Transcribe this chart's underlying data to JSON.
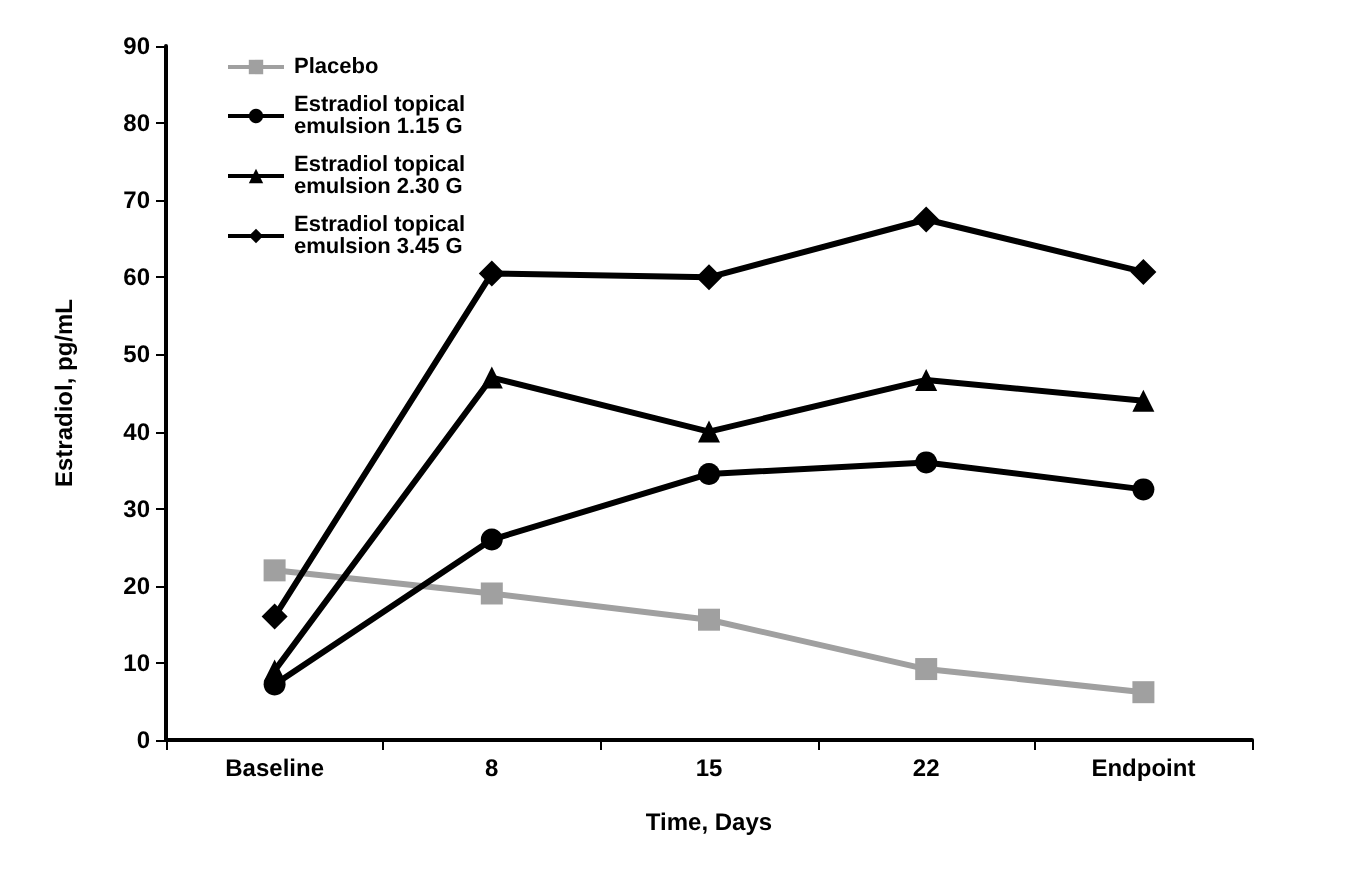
{
  "chart_data": {
    "type": "line",
    "xlabel": "Time, Days",
    "ylabel": "Estradiol, pg/mL",
    "categories": [
      "Baseline",
      "8",
      "15",
      "22",
      "Endpoint"
    ],
    "ylim": [
      0,
      90
    ],
    "yticks": [
      0,
      10,
      20,
      30,
      40,
      50,
      60,
      70,
      80,
      90
    ],
    "grid": false,
    "legend": "top left",
    "line_style": "solid",
    "series": [
      {
        "name": "Placebo",
        "color": "#a0a0a0",
        "marker": "square",
        "values": [
          22,
          19,
          15.6,
          9.2,
          6.2
        ]
      },
      {
        "name": "Estradiol topical emulsion 1.15 G",
        "color": "#000000",
        "marker": "circle",
        "values": [
          7.2,
          26,
          34.5,
          36,
          32.5
        ]
      },
      {
        "name": "Estradiol topical emulsion 2.30 G",
        "color": "#000000",
        "marker": "triangle",
        "values": [
          9,
          47,
          40,
          46.7,
          44
        ]
      },
      {
        "name": "Estradiol topical emulsion 3.45 G",
        "color": "#000000",
        "marker": "diamond",
        "values": [
          16,
          60.5,
          60,
          67.5,
          60.7
        ]
      }
    ]
  }
}
